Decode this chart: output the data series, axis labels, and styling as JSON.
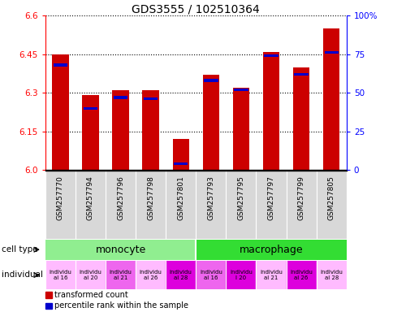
{
  "title": "GDS3555 / 102510364",
  "samples": [
    "GSM257770",
    "GSM257794",
    "GSM257796",
    "GSM257798",
    "GSM257801",
    "GSM257793",
    "GSM257795",
    "GSM257797",
    "GSM257799",
    "GSM257805"
  ],
  "red_values": [
    6.45,
    6.29,
    6.31,
    6.31,
    6.12,
    6.37,
    6.32,
    6.46,
    6.4,
    6.55
  ],
  "blue_values": [
    0.68,
    0.4,
    0.47,
    0.46,
    0.04,
    0.58,
    0.52,
    0.74,
    0.62,
    0.76
  ],
  "y_min": 6.0,
  "y_max": 6.6,
  "y_ticks": [
    6.0,
    6.15,
    6.3,
    6.45,
    6.6
  ],
  "y2_ticks": [
    0,
    25,
    50,
    75,
    100
  ],
  "cell_type_colors": [
    "#90ee90",
    "#33dd33"
  ],
  "ind_colors": [
    "#ffbbff",
    "#ffbbff",
    "#ee66ee",
    "#ffbbff",
    "#dd00dd",
    "#ee66ee",
    "#dd00dd",
    "#ffbbff",
    "#dd00dd",
    "#ffbbff"
  ],
  "ind_labels": [
    "individu\nal 16",
    "individu\nal 20",
    "individu\nal 21",
    "individu\nal 26",
    "individu\nal 28",
    "individu\nal 16",
    "individu\nl 20",
    "individu\nal 21",
    "individu\nal 26",
    "individu\nal 28"
  ],
  "bar_color_red": "#cc0000",
  "bar_color_blue": "#0000cc",
  "bg_color": "#d8d8d8",
  "bar_width": 0.55,
  "legend_items": [
    "transformed count",
    "percentile rank within the sample"
  ]
}
